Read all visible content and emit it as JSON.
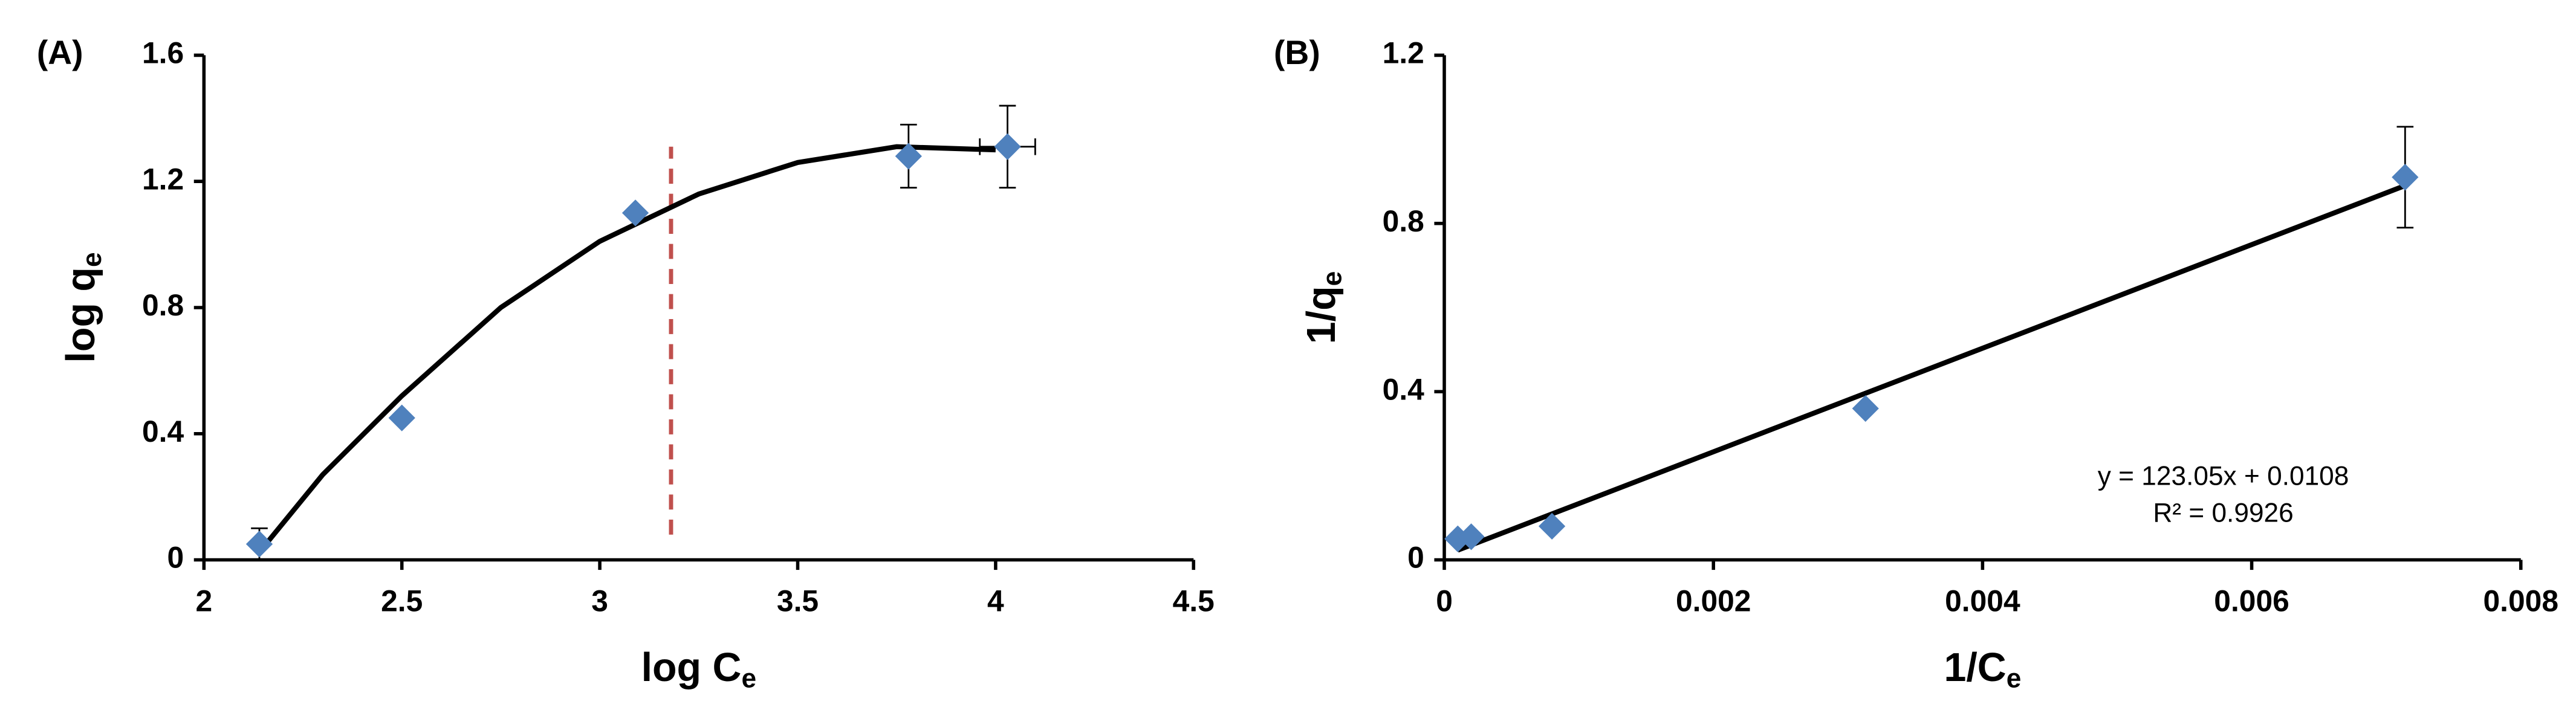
{
  "chart_data": [
    {
      "type": "scatter",
      "panel_label": "(A)",
      "x_label": {
        "text": "log C",
        "sub": "e"
      },
      "y_label": {
        "text": "log q",
        "sub": "e"
      },
      "xlim": [
        2,
        4.5
      ],
      "xticks": [
        2,
        2.5,
        3,
        3.5,
        4,
        4.5
      ],
      "ylim": [
        0,
        1.6
      ],
      "yticks": [
        0,
        0.4,
        0.8,
        1.2,
        1.6
      ],
      "series": [
        {
          "color": "#4f81bd",
          "x": [
            2.14,
            2.5,
            3.09,
            3.78,
            4.03
          ],
          "values": [
            0.05,
            0.45,
            1.1,
            1.28,
            1.31
          ],
          "errors": [
            0.05,
            null,
            null,
            0.1,
            0.13
          ],
          "xerrors": [
            null,
            null,
            null,
            null,
            0.07
          ]
        }
      ],
      "trendline": {
        "color": "#000000",
        "x": [
          2.15,
          2.3,
          2.5,
          2.75,
          3.0,
          3.25,
          3.5,
          3.75,
          4.0
        ],
        "y": [
          0.04,
          0.27,
          0.52,
          0.8,
          1.01,
          1.16,
          1.26,
          1.31,
          1.3
        ]
      },
      "vline": {
        "color": "#c0504d",
        "x": 3.18,
        "y": [
          0.08,
          1.31
        ]
      }
    },
    {
      "type": "scatter",
      "panel_label": "(B)",
      "x_label": {
        "text": "1/C",
        "sub": "e"
      },
      "y_label": {
        "text": "1/q",
        "sub": "e"
      },
      "xlim": [
        0,
        0.008
      ],
      "xticks": [
        0,
        0.002,
        0.004,
        0.006,
        0.008
      ],
      "ylim": [
        0,
        1.2
      ],
      "yticks": [
        0,
        0.4,
        0.8,
        1.2
      ],
      "series": [
        {
          "color": "#4f81bd",
          "x": [
            0.0001,
            0.0002,
            0.0008,
            0.00313,
            0.00714
          ],
          "values": [
            0.05,
            0.055,
            0.08,
            0.36,
            0.91
          ],
          "errors": [
            null,
            null,
            null,
            null,
            0.12
          ],
          "xerrors": [
            null,
            null,
            null,
            null,
            null
          ]
        }
      ],
      "trendline": {
        "color": "#000000",
        "x": [
          0.0001,
          0.00714
        ],
        "y": [
          0.023,
          0.89
        ]
      },
      "annotations": [
        "y = 123.05x + 0.0108",
        "R² = 0.9926"
      ]
    }
  ]
}
